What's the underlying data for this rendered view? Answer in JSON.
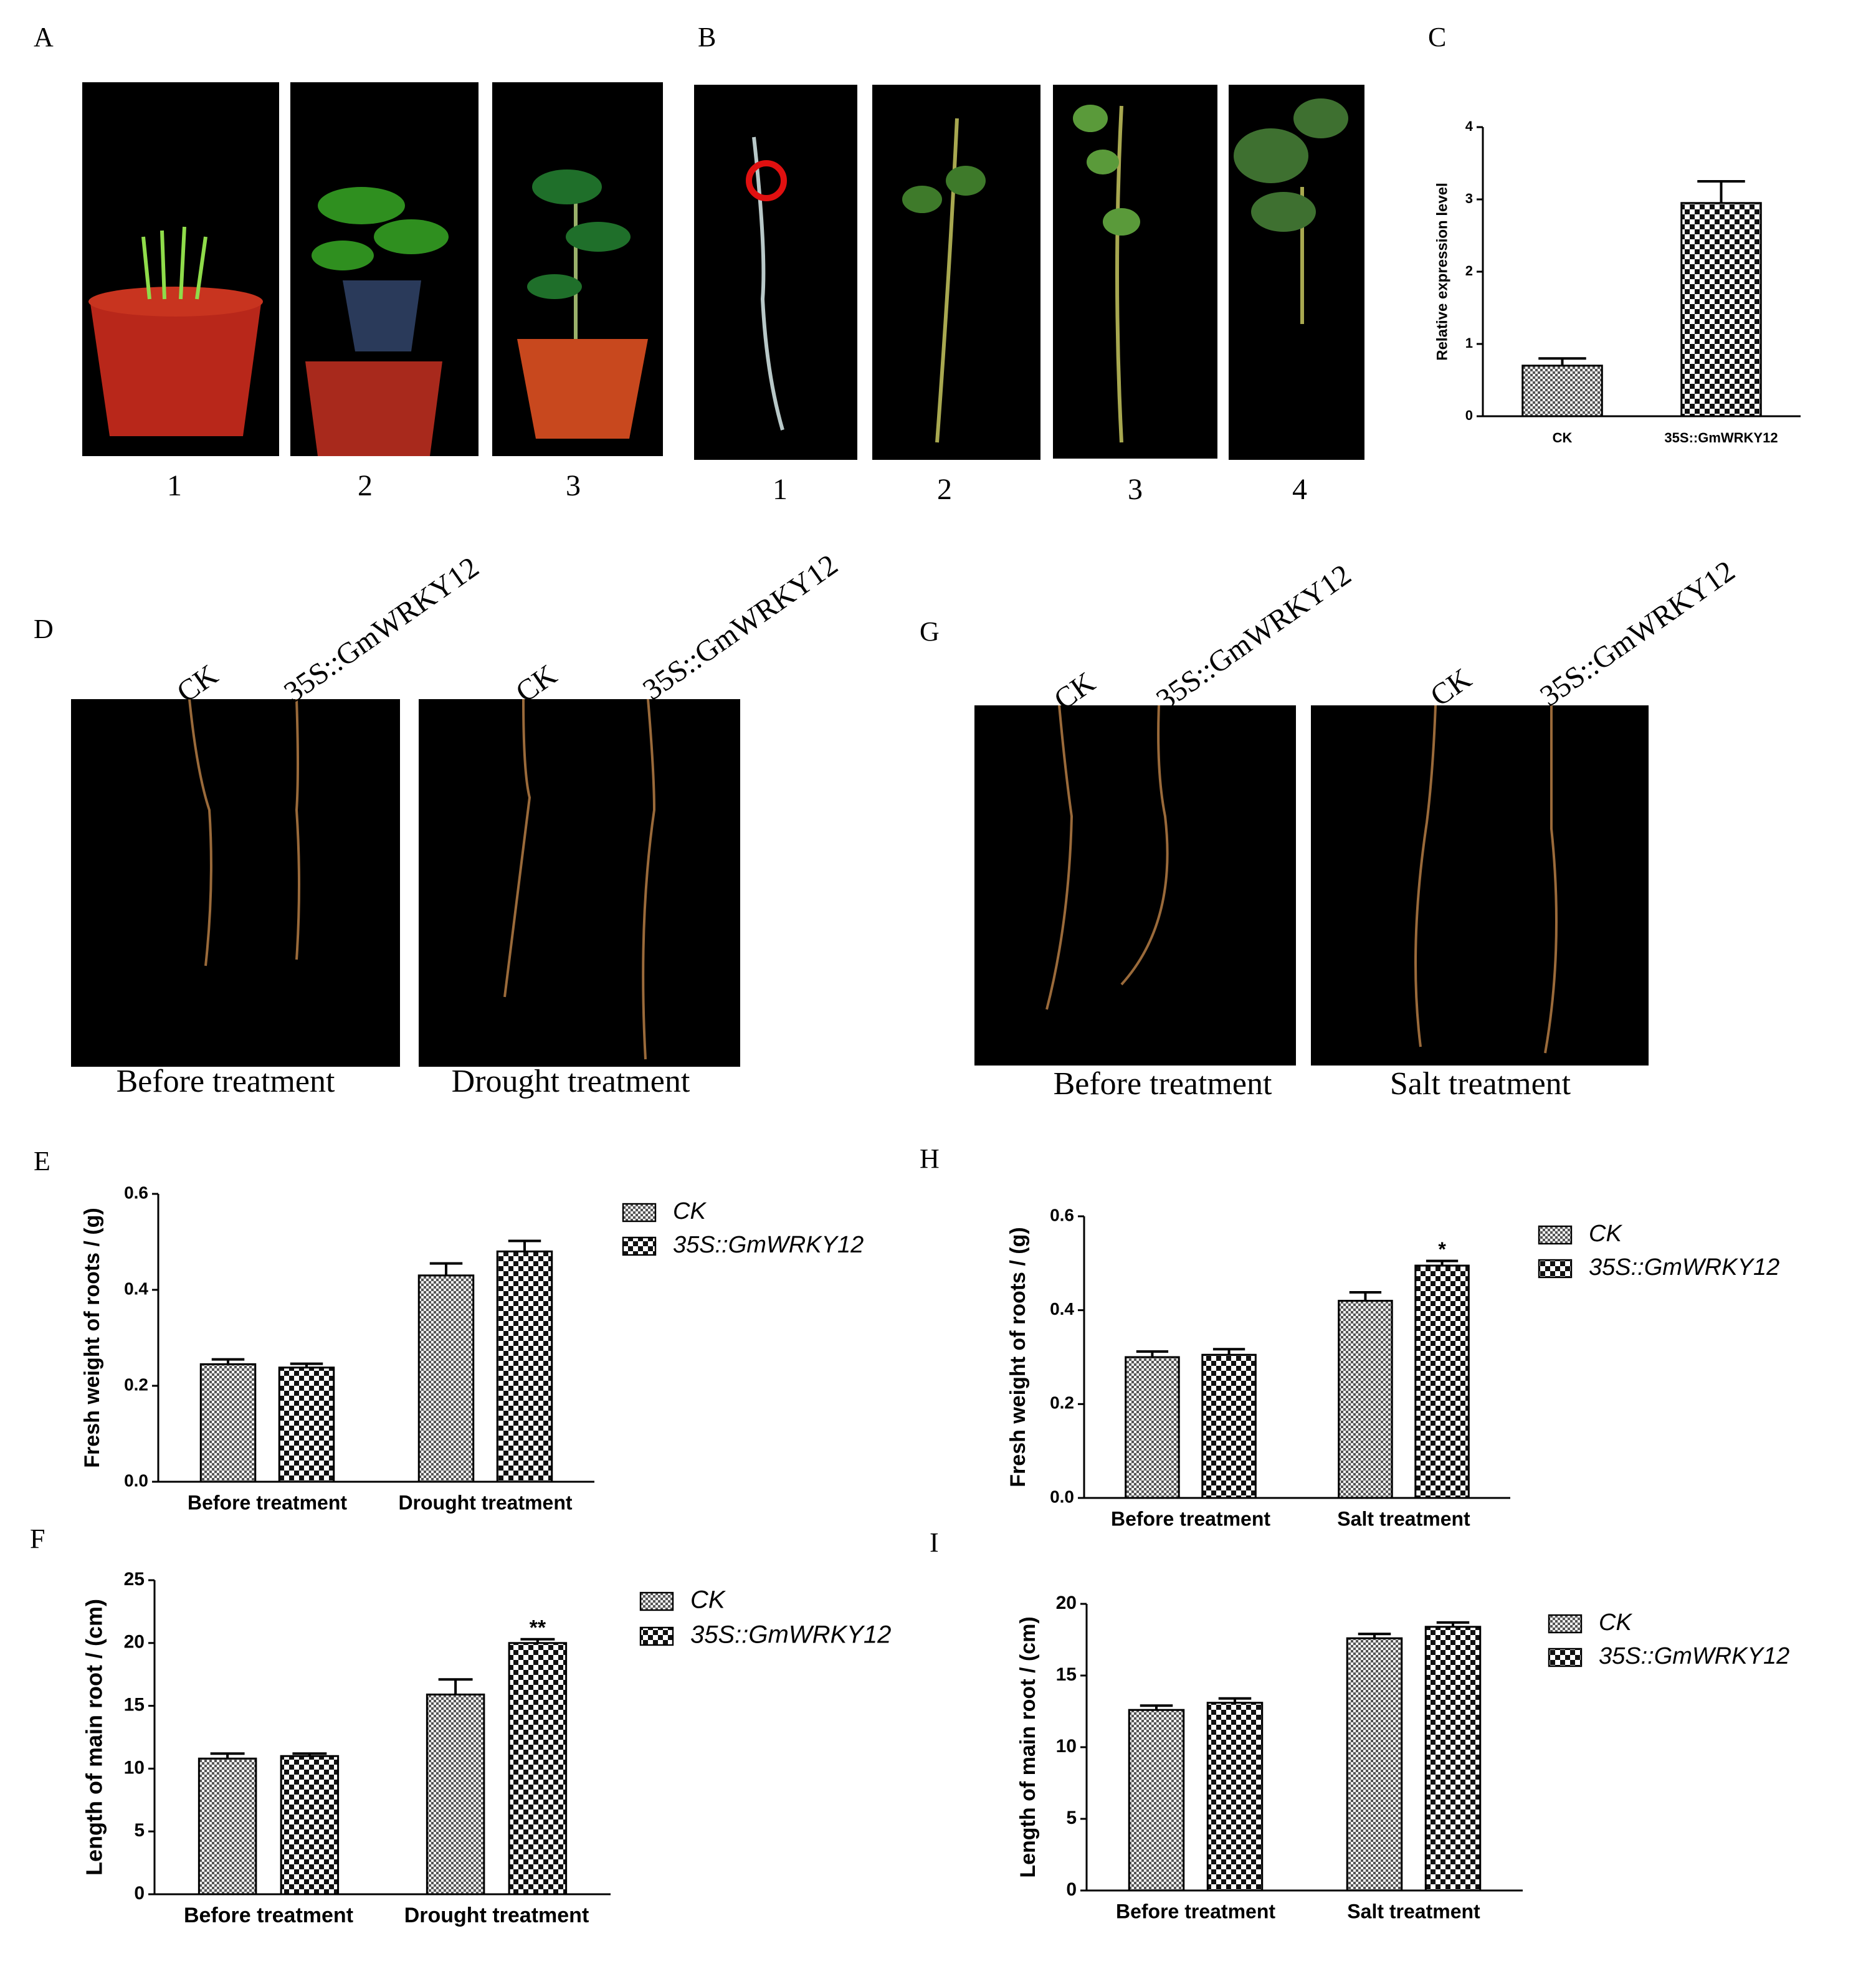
{
  "panel_labels": [
    "A",
    "B",
    "C",
    "D",
    "E",
    "F",
    "G",
    "H",
    "I"
  ],
  "panel_a": {
    "labels": [
      "1",
      "2",
      "3"
    ]
  },
  "panel_b": {
    "labels": [
      "1",
      "2",
      "3",
      "4"
    ]
  },
  "panel_d": {
    "column_labels": [
      "CK",
      "35S::GmWRKY12",
      "CK",
      "35S::GmWRKY12"
    ],
    "captions": [
      "Before treatment",
      "Drought  treatment"
    ]
  },
  "panel_g": {
    "column_labels": [
      "CK",
      "35S::GmWRKY12",
      "CK",
      "35S::GmWRKY12"
    ],
    "captions": [
      "Before treatment",
      "Salt treatment"
    ]
  },
  "chart_data": [
    {
      "type": "bar",
      "y_label": "Relative expression level",
      "categories": [
        "CK",
        "35S::GmWRKY12"
      ],
      "values": [
        0.7,
        2.95
      ],
      "errors": [
        0.1,
        0.3
      ],
      "ylim": [
        0,
        4
      ],
      "yticks": [
        0,
        1,
        2,
        3,
        4
      ]
    },
    {
      "type": "grouped_bar",
      "y_label": "Fresh weight of roots / (g)",
      "categories": [
        "Before treatment",
        "Drought treatment"
      ],
      "series": [
        {
          "name": "CK",
          "values": [
            0.245,
            0.43
          ],
          "errors": [
            0.01,
            0.025
          ]
        },
        {
          "name": "35S::GmWRKY12",
          "values": [
            0.238,
            0.48
          ],
          "errors": [
            0.008,
            0.022
          ]
        }
      ],
      "ylim": [
        0,
        0.6
      ],
      "yticks": [
        {
          "value": 0,
          "label": "0.0"
        },
        0.2,
        0.4,
        0.6
      ]
    },
    {
      "type": "grouped_bar",
      "y_label": "Length of main root / (cm)",
      "categories": [
        "Before treatment",
        "Drought treatment"
      ],
      "series": [
        {
          "name": "CK",
          "values": [
            10.8,
            15.9
          ],
          "errors": [
            0.4,
            1.2
          ]
        },
        {
          "name": "35S::GmWRKY12",
          "values": [
            11.0,
            20.0
          ],
          "errors": [
            0.2,
            0.3
          ],
          "labels": [
            null,
            "**"
          ]
        }
      ],
      "ylim": [
        0,
        25
      ],
      "yticks": [
        0,
        5,
        10,
        15,
        20,
        25
      ]
    },
    {
      "type": "grouped_bar",
      "y_label": "Fresh weight of roots / (g)",
      "categories": [
        "Before treatment",
        "Salt treatment"
      ],
      "series": [
        {
          "name": "CK",
          "values": [
            0.3,
            0.42
          ],
          "errors": [
            0.012,
            0.018
          ]
        },
        {
          "name": "35S::GmWRKY12",
          "values": [
            0.305,
            0.495
          ],
          "errors": [
            0.012,
            0.01
          ],
          "labels": [
            null,
            "*"
          ]
        }
      ],
      "ylim": [
        0,
        0.6
      ],
      "yticks": [
        {
          "value": 0,
          "label": "0.0"
        },
        0.2,
        0.4,
        0.6
      ]
    },
    {
      "type": "grouped_bar",
      "y_label": "Length of main root / (cm)",
      "categories": [
        "Before treatment",
        "Salt treatment"
      ],
      "series": [
        {
          "name": "CK",
          "values": [
            12.6,
            17.6
          ],
          "errors": [
            0.3,
            0.3
          ]
        },
        {
          "name": "35S::GmWRKY12",
          "values": [
            13.1,
            18.4
          ],
          "errors": [
            0.3,
            0.3
          ]
        }
      ],
      "ylim": [
        0,
        20
      ],
      "yticks": [
        0,
        5,
        10,
        15,
        20
      ]
    }
  ]
}
